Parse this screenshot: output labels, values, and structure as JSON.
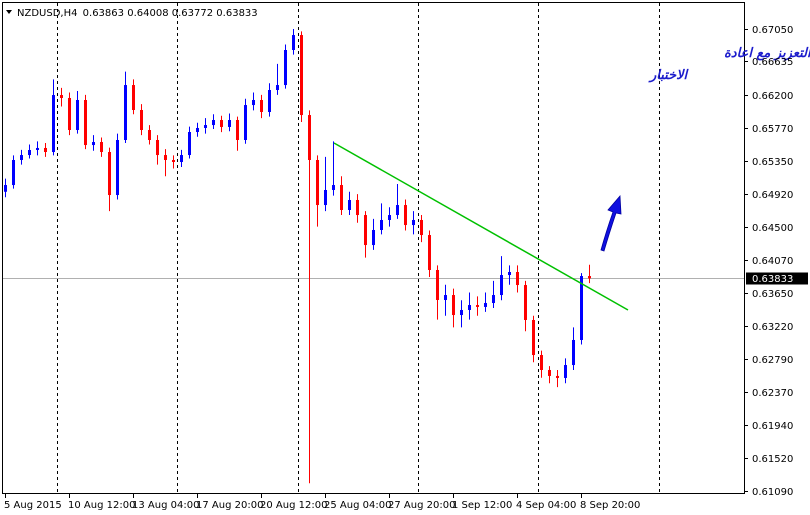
{
  "chart_data": {
    "type": "candlestick",
    "symbol": "NZDUSD,H4",
    "annotation": [
      "الشراء الان و التعزيز مع اعادة",
      "الاختبار"
    ],
    "categories": [
      "5 Aug 2015",
      null,
      null,
      null,
      null,
      null,
      null,
      null,
      "10 Aug 12:00",
      null,
      null,
      null,
      null,
      null,
      null,
      null,
      "13 Aug 04:00",
      null,
      null,
      null,
      null,
      null,
      null,
      null,
      "17 Aug 20:00",
      null,
      null,
      null,
      null,
      null,
      null,
      null,
      "20 Aug 12:00",
      null,
      null,
      null,
      null,
      null,
      null,
      null,
      "25 Aug 04:00",
      null,
      null,
      null,
      null,
      null,
      null,
      null,
      "27 Aug 20:00",
      null,
      null,
      null,
      null,
      null,
      null,
      null,
      "1 Sep 12:00",
      null,
      null,
      null,
      null,
      null,
      null,
      null,
      "4 Sep 04:00",
      null,
      null,
      null,
      null,
      null,
      null,
      null,
      "8 Sep 20:00",
      null
    ],
    "open": [
      0.6495,
      0.65037,
      0.6536,
      0.65424,
      0.65489,
      0.65515,
      0.65463,
      0.66198,
      0.6616,
      0.65747,
      0.66134,
      0.65553,
      0.65592,
      0.65463,
      0.64908,
      0.65618,
      0.66327,
      0.66005,
      0.65747,
      0.65618,
      0.65424,
      0.6536,
      0.65334,
      0.65424,
      0.65721,
      0.65773,
      0.65811,
      0.65876,
      0.65786,
      0.65876,
      0.65618,
      0.66069,
      0.66134,
      0.65979,
      0.66263,
      0.66327,
      0.66779,
      0.66972,
      0.6594,
      0.6536,
      0.64779,
      0.64973,
      0.65037,
      0.64715,
      0.64844,
      0.6465,
      0.64263,
      0.64457,
      0.64586,
      0.6465,
      0.64779,
      0.64521,
      0.64586,
      0.64392,
      0.63941,
      0.63554,
      0.63618,
      0.6336,
      0.63425,
      0.63489,
      0.63464,
      0.63515,
      0.63618,
      0.63876,
      0.63915,
      0.63747,
      0.63296,
      0.62844,
      0.62651,
      0.62574,
      0.62548,
      0.62715,
      0.63038,
      0.63863
    ],
    "high": [
      0.6512,
      0.6542,
      0.6549,
      0.6556,
      0.656,
      0.6558,
      0.664,
      0.6629,
      0.6623,
      0.6625,
      0.662,
      0.6568,
      0.6565,
      0.6552,
      0.657,
      0.665,
      0.664,
      0.6608,
      0.6581,
      0.6568,
      0.655,
      0.6542,
      0.6549,
      0.6579,
      0.6584,
      0.659,
      0.6595,
      0.6593,
      0.6596,
      0.6592,
      0.6615,
      0.6623,
      0.662,
      0.6635,
      0.666,
      0.6685,
      0.6705,
      0.6702,
      0.66,
      0.6542,
      0.654,
      0.656,
      0.6515,
      0.6495,
      0.6492,
      0.647,
      0.646,
      0.648,
      0.6475,
      0.6505,
      0.6485,
      0.647,
      0.6465,
      0.6445,
      0.64,
      0.6375,
      0.637,
      0.6355,
      0.6365,
      0.636,
      0.6365,
      0.638,
      0.6412,
      0.64,
      0.64,
      0.638,
      0.6335,
      0.629,
      0.627,
      0.6265,
      0.628,
      0.632,
      0.639,
      0.64008
    ],
    "low": [
      0.6488,
      0.6499,
      0.653,
      0.6538,
      0.6542,
      0.654,
      0.6542,
      0.6605,
      0.6568,
      0.657,
      0.655,
      0.6548,
      0.654,
      0.647,
      0.6485,
      0.6558,
      0.6595,
      0.6568,
      0.6556,
      0.653,
      0.6515,
      0.6525,
      0.6527,
      0.6538,
      0.6566,
      0.657,
      0.6576,
      0.6572,
      0.6573,
      0.6548,
      0.6557,
      0.66,
      0.659,
      0.6592,
      0.662,
      0.6628,
      0.6672,
      0.6585,
      0.6119,
      0.645,
      0.647,
      0.649,
      0.6465,
      0.6465,
      0.6455,
      0.641,
      0.642,
      0.644,
      0.645,
      0.646,
      0.6445,
      0.644,
      0.643,
      0.6385,
      0.633,
      0.6335,
      0.632,
      0.632,
      0.633,
      0.6335,
      0.634,
      0.6345,
      0.6355,
      0.6375,
      0.6365,
      0.6315,
      0.6275,
      0.6255,
      0.6248,
      0.6243,
      0.6248,
      0.6265,
      0.6298,
      0.63772
    ],
    "close": [
      0.65037,
      0.6536,
      0.65424,
      0.65489,
      0.65515,
      0.65463,
      0.66198,
      0.6616,
      0.65747,
      0.66134,
      0.65553,
      0.65592,
      0.65463,
      0.64908,
      0.65618,
      0.66327,
      0.66005,
      0.65747,
      0.65618,
      0.65424,
      0.6536,
      0.65334,
      0.65424,
      0.65721,
      0.65773,
      0.65811,
      0.65876,
      0.65786,
      0.65876,
      0.65618,
      0.66069,
      0.66134,
      0.65979,
      0.66263,
      0.66327,
      0.66779,
      0.66972,
      0.6594,
      0.6536,
      0.64779,
      0.64973,
      0.65037,
      0.64715,
      0.64844,
      0.6465,
      0.64263,
      0.64457,
      0.64586,
      0.6465,
      0.64779,
      0.64521,
      0.64586,
      0.64392,
      0.63941,
      0.63554,
      0.63618,
      0.6336,
      0.63425,
      0.63489,
      0.63464,
      0.63515,
      0.63618,
      0.63876,
      0.63915,
      0.63747,
      0.63296,
      0.62844,
      0.62651,
      0.62574,
      0.62548,
      0.62715,
      0.63038,
      0.63863,
      0.63833
    ],
    "up_color": "#0000ff",
    "down_color": "#ff0000",
    "ylim": [
      0.61064,
      0.67424
    ],
    "yticks": [
      {
        "value": 0.6705,
        "label": "0.67050"
      },
      {
        "value": 0.66635,
        "label": "0.66635"
      },
      {
        "value": 0.662,
        "label": "0.66200"
      },
      {
        "value": 0.6577,
        "label": "0.65770"
      },
      {
        "value": 0.6535,
        "label": "0.65350"
      },
      {
        "value": 0.6492,
        "label": "0.64920"
      },
      {
        "value": 0.645,
        "label": "0.64500"
      },
      {
        "value": 0.6407,
        "label": "0.64070"
      },
      {
        "value": 0.6365,
        "label": "0.63650"
      },
      {
        "value": 0.6322,
        "label": "0.63220"
      },
      {
        "value": 0.6279,
        "label": "0.62790"
      },
      {
        "value": 0.6237,
        "label": "0.62370"
      },
      {
        "value": 0.6194,
        "label": "0.61940"
      },
      {
        "value": 0.6152,
        "label": "0.61520"
      },
      {
        "value": 0.6109,
        "label": "0.61090"
      }
    ]
  }
}
